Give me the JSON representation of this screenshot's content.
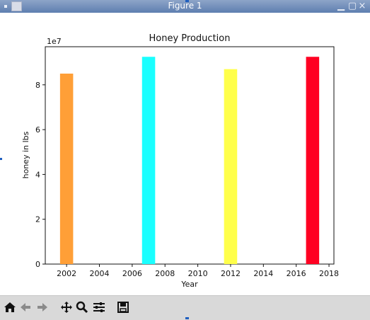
{
  "window": {
    "title": "Figure 1"
  },
  "toolbar": {
    "buttons": [
      {
        "name": "home",
        "icon": "home-icon"
      },
      {
        "name": "back",
        "icon": "back-arrow-icon"
      },
      {
        "name": "forward",
        "icon": "forward-arrow-icon"
      },
      {
        "name": "pan",
        "icon": "move-cross-icon"
      },
      {
        "name": "zoom",
        "icon": "magnifier-icon"
      },
      {
        "name": "configure",
        "icon": "sliders-icon"
      },
      {
        "name": "save",
        "icon": "floppy-disk-icon"
      }
    ]
  },
  "chart_data": {
    "type": "bar",
    "title": "Honey Production",
    "xlabel": "Year",
    "ylabel": "honey in lbs",
    "y_offset_label": "1e7",
    "x": [
      2002,
      2007,
      2012,
      2017
    ],
    "values": [
      85000000,
      92500000,
      87000000,
      92500000
    ],
    "bar_colors": [
      "#ff9f37",
      "#1affff",
      "#ffff4a",
      "#ff0022"
    ],
    "xlim": [
      2000.7,
      2018.3
    ],
    "ylim": [
      0,
      97000000
    ],
    "xticks": [
      "2002",
      "2004",
      "2006",
      "2008",
      "2010",
      "2012",
      "2014",
      "2016",
      "2018"
    ],
    "yticks": [
      "0",
      "2",
      "4",
      "6",
      "8"
    ],
    "grid": false,
    "legend": "none"
  }
}
